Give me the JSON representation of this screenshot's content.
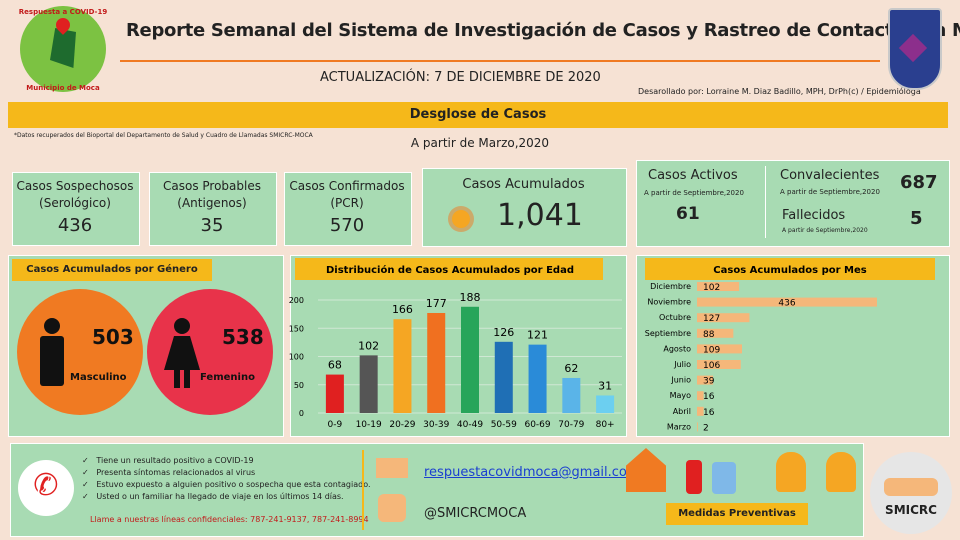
{
  "header": {
    "title": "Reporte Semanal del Sistema de Investigación de Casos y Rastreo de Contactos en Moca",
    "logo_top": "Respuesta a COVID-19",
    "logo_bottom": "Municipio de Moca",
    "update": "ACTUALIZACIÓN:  7 DE DICIEMBRE DE 2020",
    "credit": "Desarollado por: Lorraine M. Diaz Badillo, MPH, DrPh(c) / Epidemióloga"
  },
  "banner": {
    "title": "Desglose de Casos",
    "note": "*Datos recuperados del Bioportal del Departamento de Salud y Cuadro de Llamadas SMICRC-MOCA",
    "since": "A partir de Marzo,2020"
  },
  "cards": [
    {
      "label": "Casos Sospechosos",
      "sub": "(Serológico)",
      "value": 436
    },
    {
      "label": "Casos Probables",
      "sub": "(Antigenos)",
      "value": 35
    },
    {
      "label": "Casos Confirmados",
      "sub": "(PCR)",
      "value": 570
    }
  ],
  "accumulated": {
    "label": "Casos Acumulados",
    "value": "1,041"
  },
  "active": {
    "label": "Casos Activos",
    "since": "A partir de Septiembre,2020",
    "value": 61
  },
  "convalescent": {
    "label": "Convalecientes",
    "since": "A partir de Septiembre,2020",
    "value": 687
  },
  "deaths": {
    "label": "Fallecidos",
    "since": "A partir de Septiembre,2020",
    "value": 5
  },
  "gender": {
    "title": "Casos Acumulados por Género",
    "items": [
      {
        "value": 503,
        "label": "Masculino",
        "color": "#f07a22"
      },
      {
        "value": 538,
        "label": "Femenino",
        "color": "#e8334a"
      }
    ]
  },
  "chart_data": [
    {
      "type": "bar",
      "title": "Distribución de Casos Acumulados por Edad",
      "categories": [
        "0-9",
        "10-19",
        "20-29",
        "30-39",
        "40-49",
        "50-59",
        "60-69",
        "70-79",
        "80+"
      ],
      "values": [
        68,
        102,
        166,
        177,
        188,
        126,
        121,
        62,
        31
      ],
      "colors": [
        "#e02020",
        "#555555",
        "#f5a623",
        "#f07020",
        "#27a55a",
        "#1f6fb5",
        "#2a8bd8",
        "#5ab4e8",
        "#6ccff0"
      ],
      "ylim": [
        0,
        200
      ],
      "yticks": [
        0,
        50,
        100,
        150,
        200
      ],
      "grid": true
    },
    {
      "type": "hbar",
      "title": "Casos Acumulados por Mes",
      "categories": [
        "Diciembre",
        "Noviembre",
        "Octubre",
        "Septiembre",
        "Agosto",
        "Julio",
        "Junio",
        "Mayo",
        "Abril",
        "Marzo"
      ],
      "values": [
        102,
        436,
        127,
        88,
        109,
        106,
        39,
        16,
        16,
        2
      ],
      "color": "#f5b77a"
    }
  ],
  "footer": {
    "checklist": [
      "Tiene un resultado positivo a COVID-19",
      "Presenta síntomas relacionados al virus",
      "Estuvo expuesto a alguien positivo o sospecha que esta contagiado.",
      "Usted o un familiar ha llegado de viaje en los últimos 14 días."
    ],
    "call": "Llame a nuestras líneas confidenciales: 787-241-9137, 787-241-8994",
    "email": "respuestacovidmoca@gmail.com",
    "handle": "@SMICRCMOCA",
    "measures": "Medidas Preventivas",
    "org": "SMICRC"
  }
}
